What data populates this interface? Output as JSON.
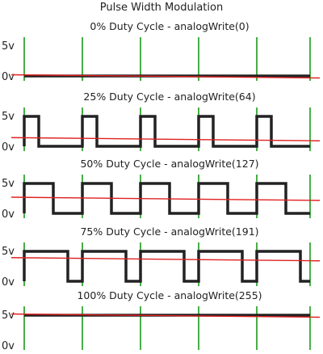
{
  "title": "Pulse Width Modulation",
  "y_high_label": "5v",
  "y_low_label": "0v",
  "colors": {
    "signal": "#222222",
    "average": "#e02020",
    "period_marker": "#1a9a1a",
    "background": "#ffffff"
  },
  "panels": [
    {
      "caption": "0% Duty Cycle - analogWrite(0)",
      "duty": 0
    },
    {
      "caption": "25% Duty Cycle - analogWrite(64)",
      "duty": 0.25
    },
    {
      "caption": "50% Duty Cycle - analogWrite(127)",
      "duty": 0.5
    },
    {
      "caption": "75% Duty Cycle - analogWrite(191)",
      "duty": 0.75
    },
    {
      "caption": "100% Duty Cycle - analogWrite(255)",
      "duty": 1
    }
  ],
  "periods": 5
}
